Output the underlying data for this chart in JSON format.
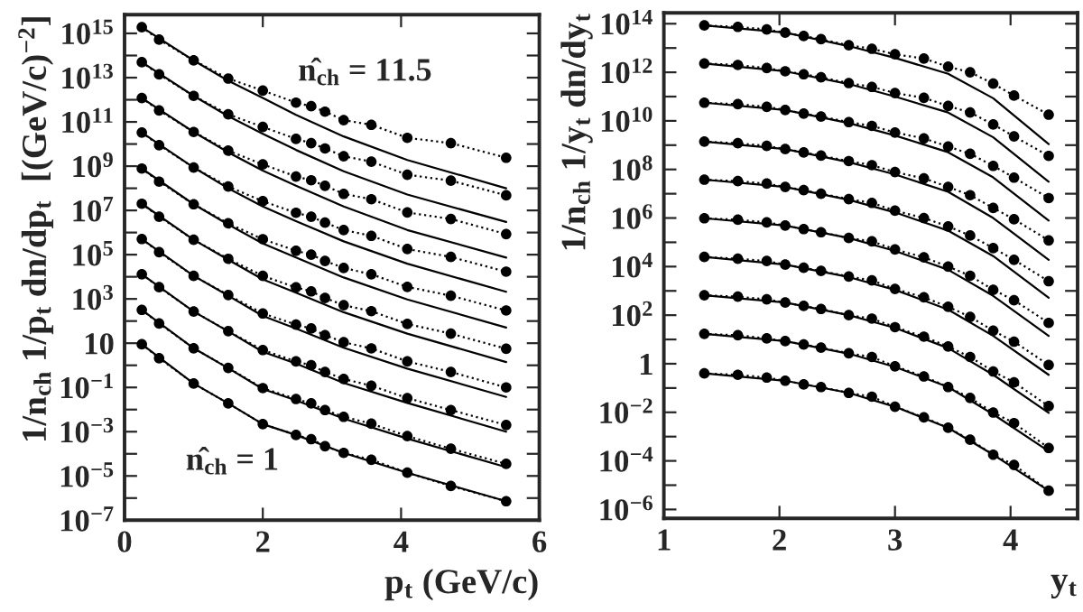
{
  "chart_data": [
    {
      "type": "line",
      "xlabel": "p$_{t}$ (GeV/c)",
      "ylabel": "1/n$_{ch}$ 1/p$_{t}$ dn/dp$_{t}$  [(GeV/c)$^{−2}$]",
      "log": "y",
      "grid": false,
      "legend": false,
      "xlim": [
        0,
        6
      ],
      "xticks": [
        0,
        2,
        4,
        6
      ],
      "ylim": [
        1e-07,
        7000000000000000.0
      ],
      "yticks": [
        {
          "value": 1e-07,
          "label": "10$^{−7}$"
        },
        {
          "value": 1e-06,
          "label": null
        },
        {
          "value": 1e-05,
          "label": "10$^{−5}$"
        },
        {
          "value": 0.0001,
          "label": null
        },
        {
          "value": 0.001,
          "label": "10$^{−3}$"
        },
        {
          "value": 0.01,
          "label": null
        },
        {
          "value": 0.1,
          "label": "10$^{−1}$"
        },
        {
          "value": 1,
          "label": null
        },
        {
          "value": 10,
          "label": "10"
        },
        {
          "value": 100,
          "label": null
        },
        {
          "value": 1000.0,
          "label": "10$^{3}$"
        },
        {
          "value": 10000.0,
          "label": null
        },
        {
          "value": 100000.0,
          "label": "10$^{5}$"
        },
        {
          "value": 1000000.0,
          "label": null
        },
        {
          "value": 10000000.0,
          "label": "10$^{7}$"
        },
        {
          "value": 100000000.0,
          "label": null
        },
        {
          "value": 1000000000.0,
          "label": "10$^{9}$"
        },
        {
          "value": 10000000000.0,
          "label": null
        },
        {
          "value": 100000000000.0,
          "label": "10$^{11}$"
        },
        {
          "value": 1000000000000.0,
          "label": null
        },
        {
          "value": 10000000000000.0,
          "label": "10$^{13}$"
        },
        {
          "value": 100000000000000.0,
          "label": null
        },
        {
          "value": 1000000000000000.0,
          "label": "10$^{15}$"
        }
      ],
      "annotations": [
        "n̂$_{ch}$ = 11.5",
        "n̂$_{ch}$ = 1"
      ],
      "x": [
        0.25,
        0.5,
        1.0,
        1.5,
        2.0,
        2.48,
        2.7,
        2.9,
        3.17,
        3.57,
        4.09,
        4.72,
        5.52
      ],
      "series": [
        {
          "color": "#000000",
          "marker": "circle",
          "line_style": "dotted",
          "values": [
            8.9,
            2.1,
            0.15,
            0.019,
            0.0022,
            0.00071,
            0.00046,
            0.00022,
            0.00011,
            5.4e-05,
            1.4e-05,
            3.5e-06,
            7.2e-07
          ]
        },
        {
          "color": "#000000",
          "marker": "circle",
          "line_style": "dotted",
          "values": [
            320,
            78,
            5.9,
            0.76,
            0.093,
            0.03,
            0.019,
            0.0095,
            0.0047,
            0.0023,
            0.00063,
            0.00017,
            3.5e-05
          ]
        },
        {
          "color": "#000000",
          "marker": "circle",
          "line_style": "dotted",
          "values": [
            13000.0,
            3400.0,
            270,
            35,
            4.9,
            1.5,
            1.0,
            0.5,
            0.24,
            0.12,
            0.033,
            0.0095,
            0.002
          ]
        },
        {
          "color": "#000000",
          "marker": "circle",
          "line_style": "dotted",
          "values": [
            510000.0,
            130000.0,
            11000.0,
            1500.0,
            220,
            69,
            46,
            23,
            11,
            5.8,
            1.5,
            0.5,
            0.1
          ]
        },
        {
          "color": "#000000",
          "marker": "circle",
          "line_style": "dotted",
          "values": [
            20000000.0,
            5200000.0,
            470000.0,
            65000.0,
            11000.0,
            3300.0,
            2200.0,
            1100.0,
            520,
            280,
            74,
            27,
            5.6
          ]
        },
        {
          "color": "#000000",
          "marker": "circle",
          "line_style": "dotted",
          "values": [
            780000000.0,
            200000000.0,
            19000000.0,
            2600000.0,
            500000.0,
            150000.0,
            100000.0,
            52000.0,
            25000.0,
            13000.0,
            3500.0,
            1400.0,
            300
          ]
        },
        {
          "color": "#000000",
          "marker": "circle",
          "line_style": "dotted",
          "values": [
            33000000000.0,
            8900000000.0,
            870000000.0,
            120000000.0,
            26000000.0,
            7800000.0,
            5200000.0,
            2800000.0,
            1300000.0,
            710000.0,
            180000.0,
            79000.0,
            17000.0
          ]
        },
        {
          "color": "#000000",
          "marker": "circle",
          "line_style": "dotted",
          "values": [
            1200000000000.0,
            330000000000.0,
            35000000000.0,
            5000000000.0,
            1200000000.0,
            340000000.0,
            230000000.0,
            130000000.0,
            56000000.0,
            32000000.0,
            8100000.0,
            4100000.0,
            850000.0
          ]
        },
        {
          "color": "#000000",
          "marker": "circle",
          "line_style": "dotted",
          "values": [
            50000000000000.0,
            14000000000000.0,
            1500000000000.0,
            220000000000.0,
            59000000000.0,
            17000000000.0,
            11000000000.0,
            6300000000.0,
            2800000000.0,
            1600000000.0,
            410000000.0,
            220000000.0,
            48000000.0
          ]
        },
        {
          "color": "#000000",
          "marker": "circle",
          "line_style": "dotted",
          "values": [
            1900000000000000.0,
            520000000000000.0,
            60000000000000.0,
            9100000000000.0,
            2600000000000.0,
            740000000000.0,
            510000000000.0,
            290000000000.0,
            120000000000.0,
            74000000000.0,
            19000000000.0,
            11000000000.0,
            2400000000.0
          ]
        },
        {
          "color": "#000000",
          "marker": "none",
          "line_style": "solid",
          "x": [
            0.25,
            1.0,
            1.5,
            2.0,
            2.48,
            3.17,
            4.09,
            5.52
          ],
          "values": [
            8.9,
            0.15,
            0.019,
            0.0022,
            0.00071,
            0.00011,
            1.4e-05,
            7.2e-07
          ]
        },
        {
          "color": "#000000",
          "marker": "none",
          "line_style": "solid",
          "x": [
            0.25,
            1.0,
            1.5,
            2.0,
            2.48,
            3.17,
            4.09,
            5.52
          ],
          "values": [
            320,
            5.9,
            0.74,
            0.085,
            0.026,
            0.0039,
            0.00049,
            2.5e-05
          ]
        },
        {
          "color": "#000000",
          "marker": "none",
          "line_style": "solid",
          "x": [
            0.25,
            1.0,
            1.5,
            2.0,
            2.48,
            3.17,
            4.09,
            5.52
          ],
          "values": [
            13000.0,
            270,
            34,
            4.1,
            1.2,
            0.16,
            0.02,
            0.001
          ]
        },
        {
          "color": "#000000",
          "marker": "none",
          "line_style": "solid",
          "x": [
            0.25,
            1.0,
            1.5,
            2.0,
            2.48,
            3.17,
            4.09,
            5.52
          ],
          "values": [
            510000.0,
            11000.0,
            1400.0,
            170,
            46,
            6.2,
            0.71,
            0.037
          ]
        },
        {
          "color": "#000000",
          "marker": "none",
          "line_style": "solid",
          "x": [
            0.25,
            1.0,
            1.5,
            2.0,
            2.48,
            3.17,
            4.09,
            5.52
          ],
          "values": [
            20000000.0,
            470000.0,
            59000.0,
            7600.0,
            1900.0,
            250,
            27,
            1.4
          ]
        },
        {
          "color": "#000000",
          "marker": "none",
          "line_style": "solid",
          "x": [
            0.25,
            1.0,
            1.5,
            2.0,
            2.48,
            3.17,
            4.09,
            5.52
          ],
          "values": [
            780000000.0,
            19000000.0,
            2300000.0,
            320000.0,
            74000.0,
            9300.0,
            950,
            51
          ]
        },
        {
          "color": "#000000",
          "marker": "none",
          "line_style": "solid",
          "x": [
            0.25,
            1.0,
            1.5,
            2.0,
            2.48,
            3.17,
            4.09,
            5.52
          ],
          "values": [
            33000000000.0,
            870000000.0,
            100000000.0,
            15000000.0,
            3300000.0,
            400000.0,
            39000.0,
            2100.0
          ]
        },
        {
          "color": "#000000",
          "marker": "none",
          "line_style": "solid",
          "x": [
            0.25,
            1.0,
            1.5,
            2.0,
            2.48,
            3.17,
            4.09,
            5.52
          ],
          "values": [
            1200000000000.0,
            35000000000.0,
            4200000000.0,
            630000000.0,
            130000000.0,
            15000000.0,
            1300000.0,
            74000.0
          ]
        },
        {
          "color": "#000000",
          "marker": "none",
          "line_style": "solid",
          "x": [
            0.25,
            1.0,
            1.5,
            2.0,
            2.48,
            3.17,
            4.09,
            5.52
          ],
          "values": [
            50000000000000.0,
            1500000000000.0,
            180000000000.0,
            29000000000.0,
            5400000000.0,
            590000000.0,
            52000000.0,
            3000000.0
          ]
        },
        {
          "color": "#000000",
          "marker": "none",
          "line_style": "solid",
          "x": [
            0.25,
            1.0,
            1.5,
            2.0,
            2.48,
            3.17,
            4.09,
            5.52
          ],
          "values": [
            1900000000000000.0,
            60000000000000.0,
            7200000000000.0,
            1200000000000.0,
            210000000000.0,
            22000000000.0,
            1900000000.0,
            100000000.0
          ]
        }
      ]
    },
    {
      "type": "line",
      "xlabel": "y$_{t}$",
      "ylabel": "1/n$_{ch}$ 1/y$_{t}$ dn/dy$_{t}$",
      "log": "y",
      "grid": false,
      "legend": false,
      "xlim": [
        1,
        4.58
      ],
      "xticks": [
        1,
        2,
        3,
        4
      ],
      "ylim": [
        4.3e-07,
        280000000000000.0
      ],
      "yticks": [
        {
          "value": 1e-06,
          "label": "10$^{−6}$"
        },
        {
          "value": 1e-05,
          "label": null
        },
        {
          "value": 0.0001,
          "label": "10$^{−4}$"
        },
        {
          "value": 0.001,
          "label": null
        },
        {
          "value": 0.01,
          "label": "10$^{−2}$"
        },
        {
          "value": 0.1,
          "label": null
        },
        {
          "value": 1,
          "label": "1"
        },
        {
          "value": 10,
          "label": null
        },
        {
          "value": 100,
          "label": "10$^{2}$"
        },
        {
          "value": 1000.0,
          "label": null
        },
        {
          "value": 10000.0,
          "label": "10$^{4}$"
        },
        {
          "value": 100000.0,
          "label": null
        },
        {
          "value": 1000000.0,
          "label": "10$^{6}$"
        },
        {
          "value": 10000000.0,
          "label": null
        },
        {
          "value": 100000000.0,
          "label": "10$^{8}$"
        },
        {
          "value": 1000000000.0,
          "label": null
        },
        {
          "value": 10000000000.0,
          "label": "10$^{10}$"
        },
        {
          "value": 100000000000.0,
          "label": null
        },
        {
          "value": 1000000000000.0,
          "label": "10$^{12}$"
        },
        {
          "value": 10000000000000.0,
          "label": null
        },
        {
          "value": 100000000000000.0,
          "label": "10$^{14}$"
        }
      ],
      "x": [
        1.35,
        1.64,
        1.89,
        2.05,
        2.21,
        2.36,
        2.6,
        2.8,
        3.0,
        3.25,
        3.46,
        3.65,
        3.85,
        4.03,
        4.33
      ],
      "series": [
        {
          "color": "#000000",
          "marker": "circle",
          "line_style": "dotted",
          "values": [
            0.4,
            0.35,
            0.27,
            0.2,
            0.14,
            0.11,
            0.063,
            0.044,
            0.017,
            0.0062,
            0.0023,
            0.00074,
            0.00018,
            6.8e-05,
            5.9e-06
          ]
        },
        {
          "color": "#000000",
          "marker": "circle",
          "line_style": "dotted",
          "values": [
            17,
            15,
            11,
            8.5,
            6.2,
            4.6,
            2.7,
            1.9,
            0.78,
            0.3,
            0.11,
            0.039,
            0.0098,
            0.0036,
            0.00034
          ]
        },
        {
          "color": "#000000",
          "marker": "circle",
          "line_style": "dotted",
          "values": [
            660,
            580,
            450,
            330,
            240,
            180,
            100,
            72,
            32,
            13,
            5.1,
            1.9,
            0.48,
            0.17,
            0.018
          ]
        },
        {
          "color": "#000000",
          "marker": "circle",
          "line_style": "dotted",
          "values": [
            25000.0,
            21000.0,
            17000.0,
            12000.0,
            8900.0,
            6600.0,
            3900.0,
            2700.0,
            1200.0,
            540,
            220,
            85,
            23,
            8.1,
            0.89
          ]
        },
        {
          "color": "#000000",
          "marker": "circle",
          "line_style": "dotted",
          "values": [
            980000.0,
            850000.0,
            660000.0,
            490000.0,
            350000.0,
            260000.0,
            150000.0,
            110000.0,
            51000.0,
            24000.0,
            10000.0,
            4200.0,
            1100.0,
            410,
            48
          ]
        },
        {
          "color": "#000000",
          "marker": "circle",
          "line_style": "dotted",
          "values": [
            38000000.0,
            33000000.0,
            26000000.0,
            19000000.0,
            14000000.0,
            10000000.0,
            6000000.0,
            4200000.0,
            2000000.0,
            1000000.0,
            450000.0,
            190000.0,
            58000.0,
            19000.0,
            2500.0
          ]
        },
        {
          "color": "#000000",
          "marker": "circle",
          "line_style": "dotted",
          "values": [
            1400000000.0,
            1200000000.0,
            930000000.0,
            690000000.0,
            500000000.0,
            370000000.0,
            220000000.0,
            150000000.0,
            78000000.0,
            43000000.0,
            19000000.0,
            8700000.0,
            2600000.0,
            890000.0,
            120000.0
          ]
        },
        {
          "color": "#000000",
          "marker": "circle",
          "line_style": "dotted",
          "values": [
            56000000000.0,
            49000000000.0,
            38000000000.0,
            28000000000.0,
            20000000000.0,
            15000000000.0,
            8900000000.0,
            6200000000.0,
            3300000000.0,
            1900000000.0,
            870000000.0,
            440000000.0,
            140000000.0,
            46000000.0,
            6600000.0
          ]
        },
        {
          "color": "#000000",
          "marker": "circle",
          "line_style": "dotted",
          "values": [
            2300000000000.0,
            2000000000000.0,
            1500000000000.0,
            1100000000000.0,
            830000000000.0,
            620000000000.0,
            360000000000.0,
            250000000000.0,
            140000000000.0,
            89000000000.0,
            41000000000.0,
            22000000000.0,
            7100000000.0,
            2300000000.0,
            360000000.0
          ]
        },
        {
          "color": "#000000",
          "marker": "circle",
          "line_style": "dotted",
          "values": [
            85000000000000.0,
            74000000000000.0,
            58000000000000.0,
            43000000000000.0,
            31000000000000.0,
            23000000000000.0,
            13000000000000.0,
            9300000000000.0,
            5500000000000.0,
            3700000000000.0,
            1700000000000.0,
            1000000000000.0,
            340000000000.0,
            110000000000.0,
            18000000000.0
          ]
        },
        {
          "color": "#000000",
          "marker": "none",
          "line_style": "solid",
          "x": [
            1.35,
            2.05,
            2.6,
            3.0,
            3.46,
            3.85,
            4.33
          ],
          "values": [
            0.4,
            0.2,
            0.063,
            0.017,
            0.0023,
            0.00018,
            5.9e-06
          ]
        },
        {
          "color": "#000000",
          "marker": "none",
          "line_style": "solid",
          "x": [
            1.35,
            2.05,
            2.6,
            3.0,
            3.46,
            3.85,
            4.33
          ],
          "values": [
            17,
            8.5,
            2.6,
            0.74,
            0.11,
            0.0083,
            0.00025
          ]
        },
        {
          "color": "#000000",
          "marker": "none",
          "line_style": "solid",
          "x": [
            1.35,
            2.05,
            2.6,
            3.0,
            3.46,
            3.85,
            4.33
          ],
          "values": [
            660,
            330,
            100,
            30,
            4.4,
            0.35,
            0.0095
          ]
        },
        {
          "color": "#000000",
          "marker": "none",
          "line_style": "solid",
          "x": [
            1.35,
            2.05,
            2.6,
            3.0,
            3.46,
            3.85,
            4.33
          ],
          "values": [
            25000.0,
            12000.0,
            3700.0,
            1100.0,
            170,
            14,
            0.35
          ]
        },
        {
          "color": "#000000",
          "marker": "none",
          "line_style": "solid",
          "x": [
            1.35,
            2.05,
            2.6,
            3.0,
            3.46,
            3.85,
            4.33
          ],
          "values": [
            980000.0,
            490000.0,
            150000.0,
            44000.0,
            7400.0,
            620,
            14
          ]
        },
        {
          "color": "#000000",
          "marker": "none",
          "line_style": "solid",
          "x": [
            1.35,
            2.05,
            2.6,
            3.0,
            3.46,
            3.85,
            4.33
          ],
          "values": [
            38000000.0,
            19000000.0,
            5600000.0,
            1700000.0,
            300000.0,
            27000.0,
            520
          ]
        },
        {
          "color": "#000000",
          "marker": "none",
          "line_style": "solid",
          "x": [
            1.35,
            2.05,
            2.6,
            3.0,
            3.46,
            3.85,
            4.33
          ],
          "values": [
            1400000000.0,
            690000000.0,
            200000000.0,
            62000000.0,
            12000000.0,
            1000000.0,
            19000.0
          ]
        },
        {
          "color": "#000000",
          "marker": "none",
          "line_style": "solid",
          "x": [
            1.35,
            2.05,
            2.6,
            3.0,
            3.46,
            3.85,
            4.33
          ],
          "values": [
            56000000000.0,
            28000000000.0,
            8100000000.0,
            2500000000.0,
            510000000.0,
            47000000.0,
            780000.0
          ]
        },
        {
          "color": "#000000",
          "marker": "none",
          "line_style": "solid",
          "x": [
            1.35,
            2.05,
            2.6,
            3.0,
            3.46,
            3.85,
            4.33
          ],
          "values": [
            2300000000000.0,
            1100000000000.0,
            330000000000.0,
            100000000000.0,
            22000000000.0,
            2100000000.0,
            31000000.0
          ]
        },
        {
          "color": "#000000",
          "marker": "none",
          "line_style": "solid",
          "x": [
            1.35,
            2.05,
            2.6,
            3.0,
            3.46,
            3.85,
            4.33
          ],
          "values": [
            85000000000000.0,
            43000000000000.0,
            12000000000000.0,
            3900000000000.0,
            870000000000.0,
            85000000000.0,
            1100000000.0
          ]
        }
      ]
    }
  ]
}
